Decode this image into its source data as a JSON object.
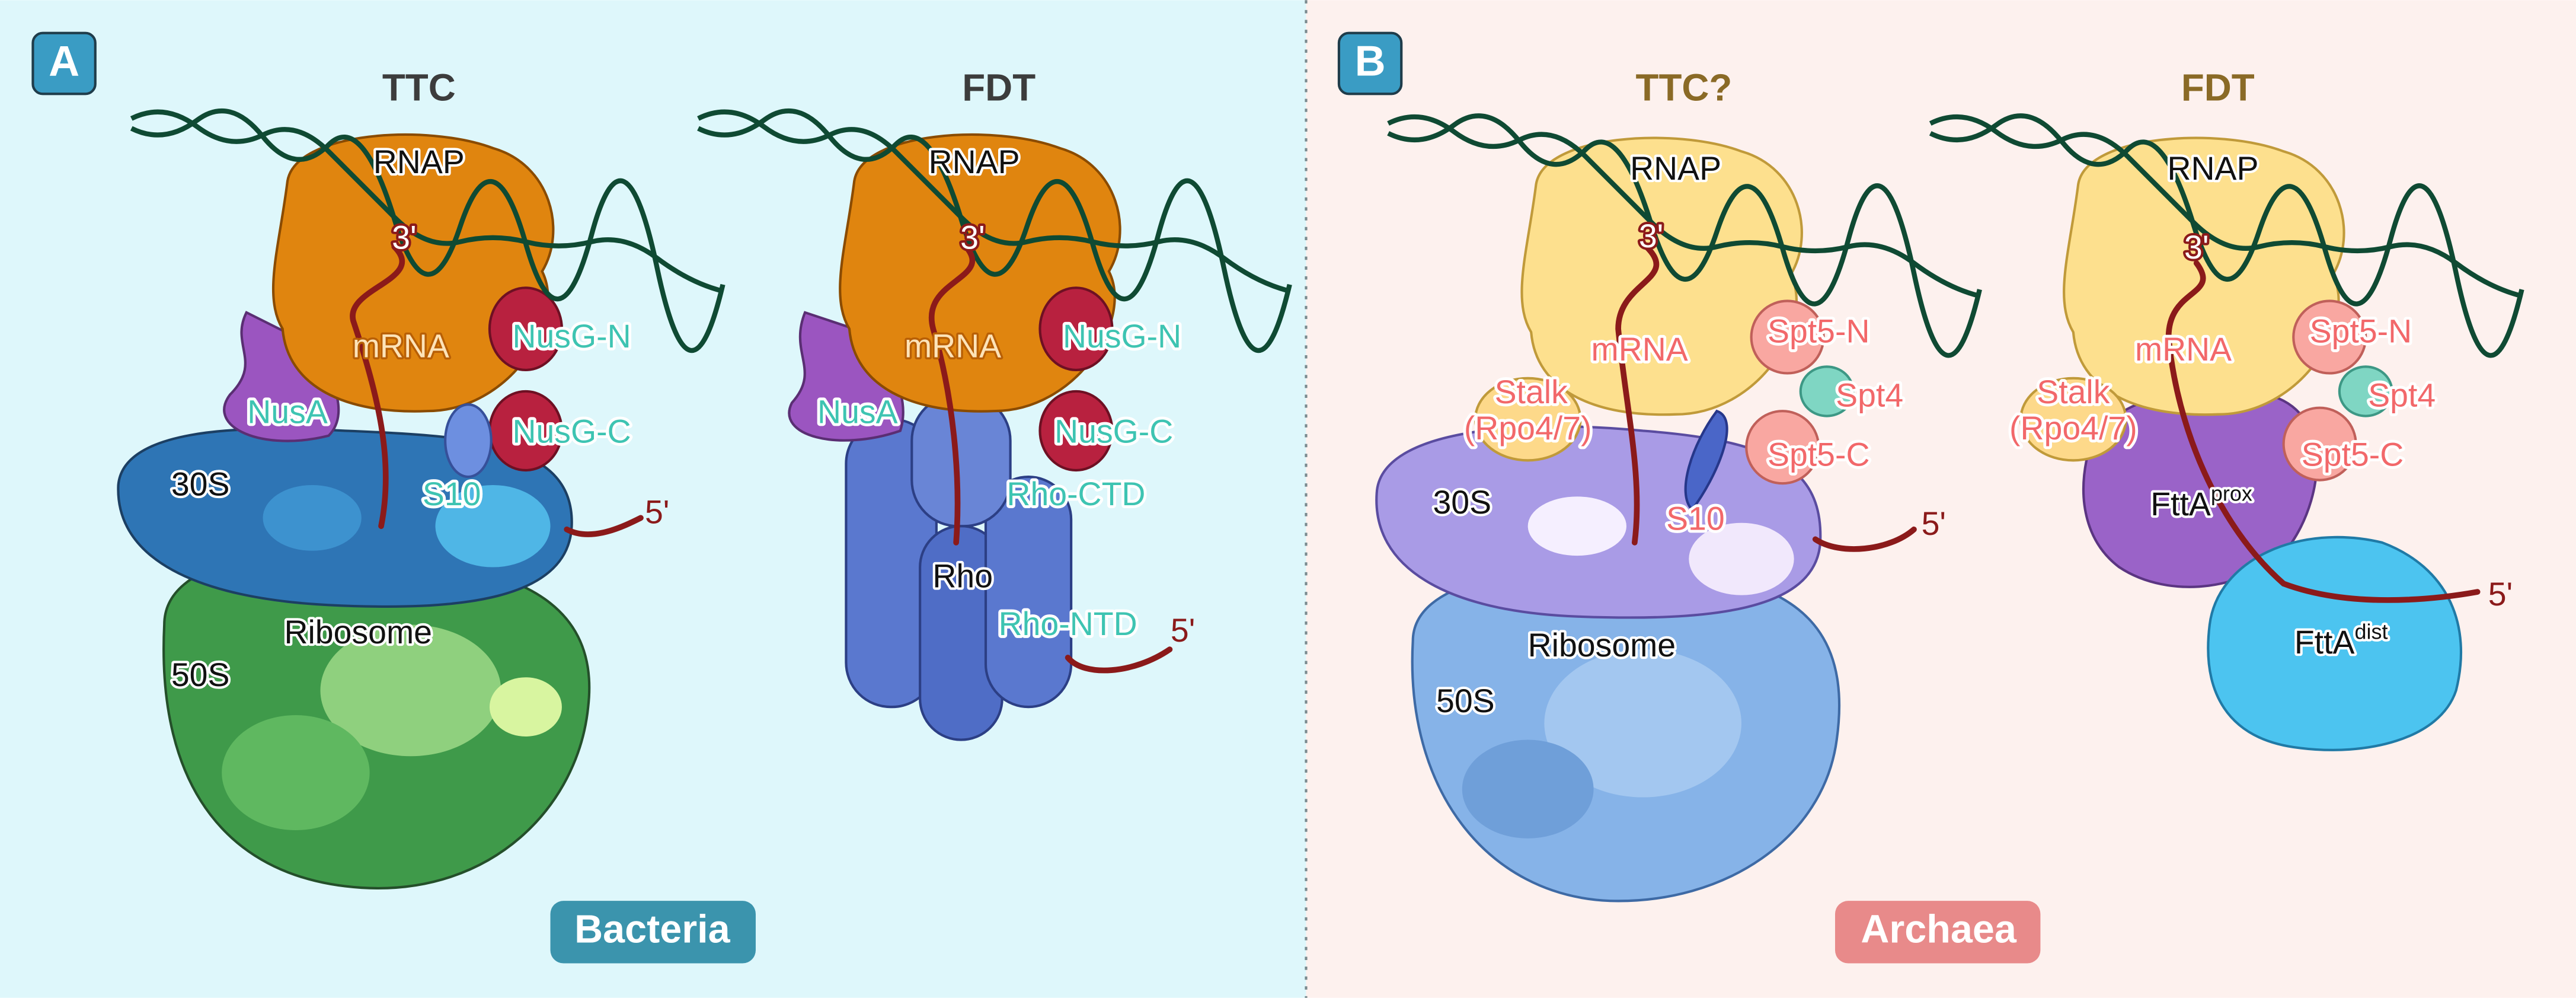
{
  "panels": [
    {
      "letter": "A",
      "group": "Bacteria",
      "diagrams": [
        {
          "title": "TTC",
          "labels": [
            "RNAP",
            "3'",
            "mRNA",
            "NusA",
            "NusG-N",
            "NusG-C",
            "30S",
            "S10",
            "Ribosome",
            "50S",
            "5'"
          ]
        },
        {
          "title": "FDT",
          "labels": [
            "RNAP",
            "3'",
            "mRNA",
            "NusA",
            "NusG-N",
            "NusG-C",
            "Rho-CTD",
            "Rho",
            "Rho-NTD",
            "5'"
          ]
        }
      ]
    },
    {
      "letter": "B",
      "group": "Archaea",
      "diagrams": [
        {
          "title": "TTC?",
          "labels": [
            "RNAP",
            "3'",
            "mRNA",
            "Stalk",
            "(Rpo4/7)",
            "Spt5-N",
            "Spt4",
            "Spt5-C",
            "30S",
            "S10",
            "Ribosome",
            "50S",
            "5'"
          ]
        },
        {
          "title": "FDT",
          "labels": [
            "RNAP",
            "3'",
            "mRNA",
            "Stalk",
            "(Rpo4/7)",
            "Spt5-N",
            "Spt4",
            "Spt5-C",
            {
              "text": "FttA",
              "sup": "prox"
            },
            {
              "text": "FttA",
              "sup": "dist"
            },
            "5'"
          ]
        }
      ]
    }
  ]
}
